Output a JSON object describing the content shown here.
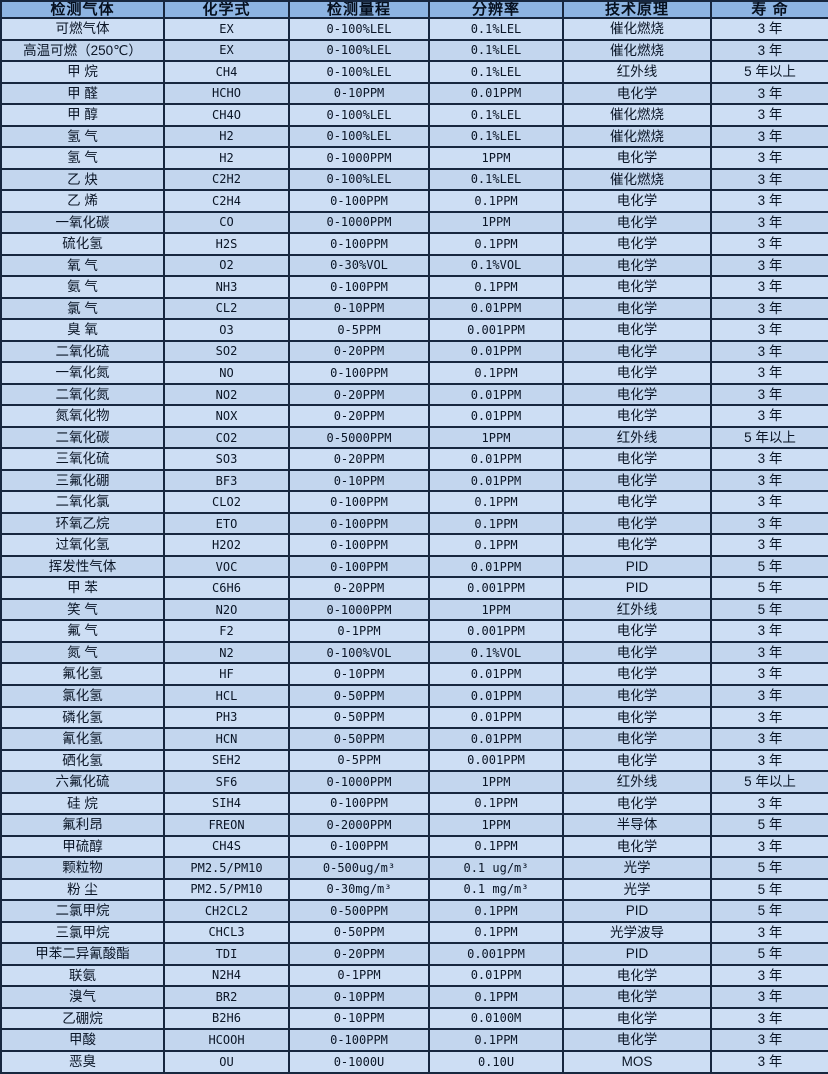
{
  "colors": {
    "border": "#17273f",
    "header_bg": "#8db4e2",
    "row_bg": "#cddef4",
    "row_alt_bg": "#c3d6ee",
    "text": "#0a1526"
  },
  "table": {
    "columns": [
      {
        "key": "gas",
        "label": "检测气体"
      },
      {
        "key": "formula",
        "label": "化学式"
      },
      {
        "key": "range",
        "label": "检测量程"
      },
      {
        "key": "resolution",
        "label": "分辨率"
      },
      {
        "key": "principle",
        "label": "技术原理"
      },
      {
        "key": "lifespan",
        "label": "寿 命"
      }
    ],
    "rows": [
      [
        "可燃气体",
        "EX",
        "0-100%LEL",
        "0.1%LEL",
        "催化燃烧",
        "3 年"
      ],
      [
        "高温可燃（250℃）",
        "EX",
        "0-100%LEL",
        "0.1%LEL",
        "催化燃烧",
        "3 年"
      ],
      [
        "甲 烷",
        "CH4",
        "0-100%LEL",
        "0.1%LEL",
        "红外线",
        "5 年以上"
      ],
      [
        "甲 醛",
        "HCHO",
        "0-10PPM",
        "0.01PPM",
        "电化学",
        "3 年"
      ],
      [
        "甲 醇",
        "CH4O",
        "0-100%LEL",
        "0.1%LEL",
        "催化燃烧",
        "3 年"
      ],
      [
        "氢 气",
        "H2",
        "0-100%LEL",
        "0.1%LEL",
        "催化燃烧",
        "3 年"
      ],
      [
        "氢 气",
        "H2",
        "0-1000PPM",
        "1PPM",
        "电化学",
        "3 年"
      ],
      [
        "乙 炔",
        "C2H2",
        "0-100%LEL",
        "0.1%LEL",
        "催化燃烧",
        "3 年"
      ],
      [
        "乙 烯",
        "C2H4",
        "0-100PPM",
        "0.1PPM",
        "电化学",
        "3 年"
      ],
      [
        "一氧化碳",
        "CO",
        "0-1000PPM",
        "1PPM",
        "电化学",
        "3 年"
      ],
      [
        "硫化氢",
        "H2S",
        "0-100PPM",
        "0.1PPM",
        "电化学",
        "3 年"
      ],
      [
        "氧 气",
        "O2",
        "0-30%VOL",
        "0.1%VOL",
        "电化学",
        "3 年"
      ],
      [
        "氨 气",
        "NH3",
        "0-100PPM",
        "0.1PPM",
        "电化学",
        "3 年"
      ],
      [
        "氯 气",
        "CL2",
        "0-10PPM",
        "0.01PPM",
        "电化学",
        "3 年"
      ],
      [
        "臭 氧",
        "O3",
        "0-5PPM",
        "0.001PPM",
        "电化学",
        "3 年"
      ],
      [
        "二氧化硫",
        "SO2",
        "0-20PPM",
        "0.01PPM",
        "电化学",
        "3 年"
      ],
      [
        "一氧化氮",
        "NO",
        "0-100PPM",
        "0.1PPM",
        "电化学",
        "3 年"
      ],
      [
        "二氧化氮",
        "NO2",
        "0-20PPM",
        "0.01PPM",
        "电化学",
        "3 年"
      ],
      [
        "氮氧化物",
        "NOX",
        "0-20PPM",
        "0.01PPM",
        "电化学",
        "3 年"
      ],
      [
        "二氧化碳",
        "CO2",
        "0-5000PPM",
        "1PPM",
        "红外线",
        "5 年以上"
      ],
      [
        "三氧化硫",
        "SO3",
        "0-20PPM",
        "0.01PPM",
        "电化学",
        "3 年"
      ],
      [
        "三氟化硼",
        "BF3",
        "0-10PPM",
        "0.01PPM",
        "电化学",
        "3 年"
      ],
      [
        "二氧化氯",
        "CLO2",
        "0-100PPM",
        "0.1PPM",
        "电化学",
        "3 年"
      ],
      [
        "环氧乙烷",
        "ETO",
        "0-100PPM",
        "0.1PPM",
        "电化学",
        "3 年"
      ],
      [
        "过氧化氢",
        "H2O2",
        "0-100PPM",
        "0.1PPM",
        "电化学",
        "3 年"
      ],
      [
        "挥发性气体",
        "VOC",
        "0-100PPM",
        "0.01PPM",
        "PID",
        "5 年"
      ],
      [
        "甲 苯",
        "C6H6",
        "0-20PPM",
        "0.001PPM",
        "PID",
        "5 年"
      ],
      [
        "笑 气",
        "N2O",
        "0-1000PPM",
        "1PPM",
        "红外线",
        "5 年"
      ],
      [
        "氟 气",
        "F2",
        "0-1PPM",
        "0.001PPM",
        "电化学",
        "3 年"
      ],
      [
        "氮 气",
        "N2",
        "0-100%VOL",
        "0.1%VOL",
        "电化学",
        "3 年"
      ],
      [
        "氟化氢",
        "HF",
        "0-10PPM",
        "0.01PPM",
        "电化学",
        "3 年"
      ],
      [
        "氯化氢",
        "HCL",
        "0-50PPM",
        "0.01PPM",
        "电化学",
        "3 年"
      ],
      [
        "磷化氢",
        "PH3",
        "0-50PPM",
        "0.01PPM",
        "电化学",
        "3 年"
      ],
      [
        "氰化氢",
        "HCN",
        "0-50PPM",
        "0.01PPM",
        "电化学",
        "3 年"
      ],
      [
        "硒化氢",
        "SEH2",
        "0-5PPM",
        "0.001PPM",
        "电化学",
        "3 年"
      ],
      [
        "六氟化硫",
        "SF6",
        "0-1000PPM",
        "1PPM",
        "红外线",
        "5 年以上"
      ],
      [
        "硅 烷",
        "SIH4",
        "0-100PPM",
        "0.1PPM",
        "电化学",
        "3 年"
      ],
      [
        "氟利昂",
        "FREON",
        "0-2000PPM",
        "1PPM",
        "半导体",
        "5 年"
      ],
      [
        "甲硫醇",
        "CH4S",
        "0-100PPM",
        "0.1PPM",
        "电化学",
        "3 年"
      ],
      [
        "颗粒物",
        "PM2.5/PM10",
        "0-500ug/m³",
        "0.1 ug/m³",
        "光学",
        "5 年"
      ],
      [
        "粉 尘",
        "PM2.5/PM10",
        "0-30mg/m³",
        "0.1 mg/m³",
        "光学",
        "5 年"
      ],
      [
        "二氯甲烷",
        "CH2CL2",
        "0-500PPM",
        "0.1PPM",
        "PID",
        "5 年"
      ],
      [
        "三氯甲烷",
        "CHCL3",
        "0-50PPM",
        "0.1PPM",
        "光学波导",
        "3 年"
      ],
      [
        "甲苯二异氰酸酯",
        "TDI",
        "0-20PPM",
        "0.001PPM",
        "PID",
        "5 年"
      ],
      [
        "联氨",
        "N2H4",
        "0-1PPM",
        "0.01PPM",
        "电化学",
        "3 年"
      ],
      [
        "溴气",
        "BR2",
        "0-10PPM",
        "0.1PPM",
        "电化学",
        "3 年"
      ],
      [
        "乙硼烷",
        "B2H6",
        "0-10PPM",
        "0.0100M",
        "电化学",
        "3 年"
      ],
      [
        "甲酸",
        "HCOOH",
        "0-100PPM",
        "0.1PPM",
        "电化学",
        "3 年"
      ],
      [
        "恶臭",
        "OU",
        "0-1000U",
        "0.10U",
        "MOS",
        "3 年"
      ]
    ]
  }
}
